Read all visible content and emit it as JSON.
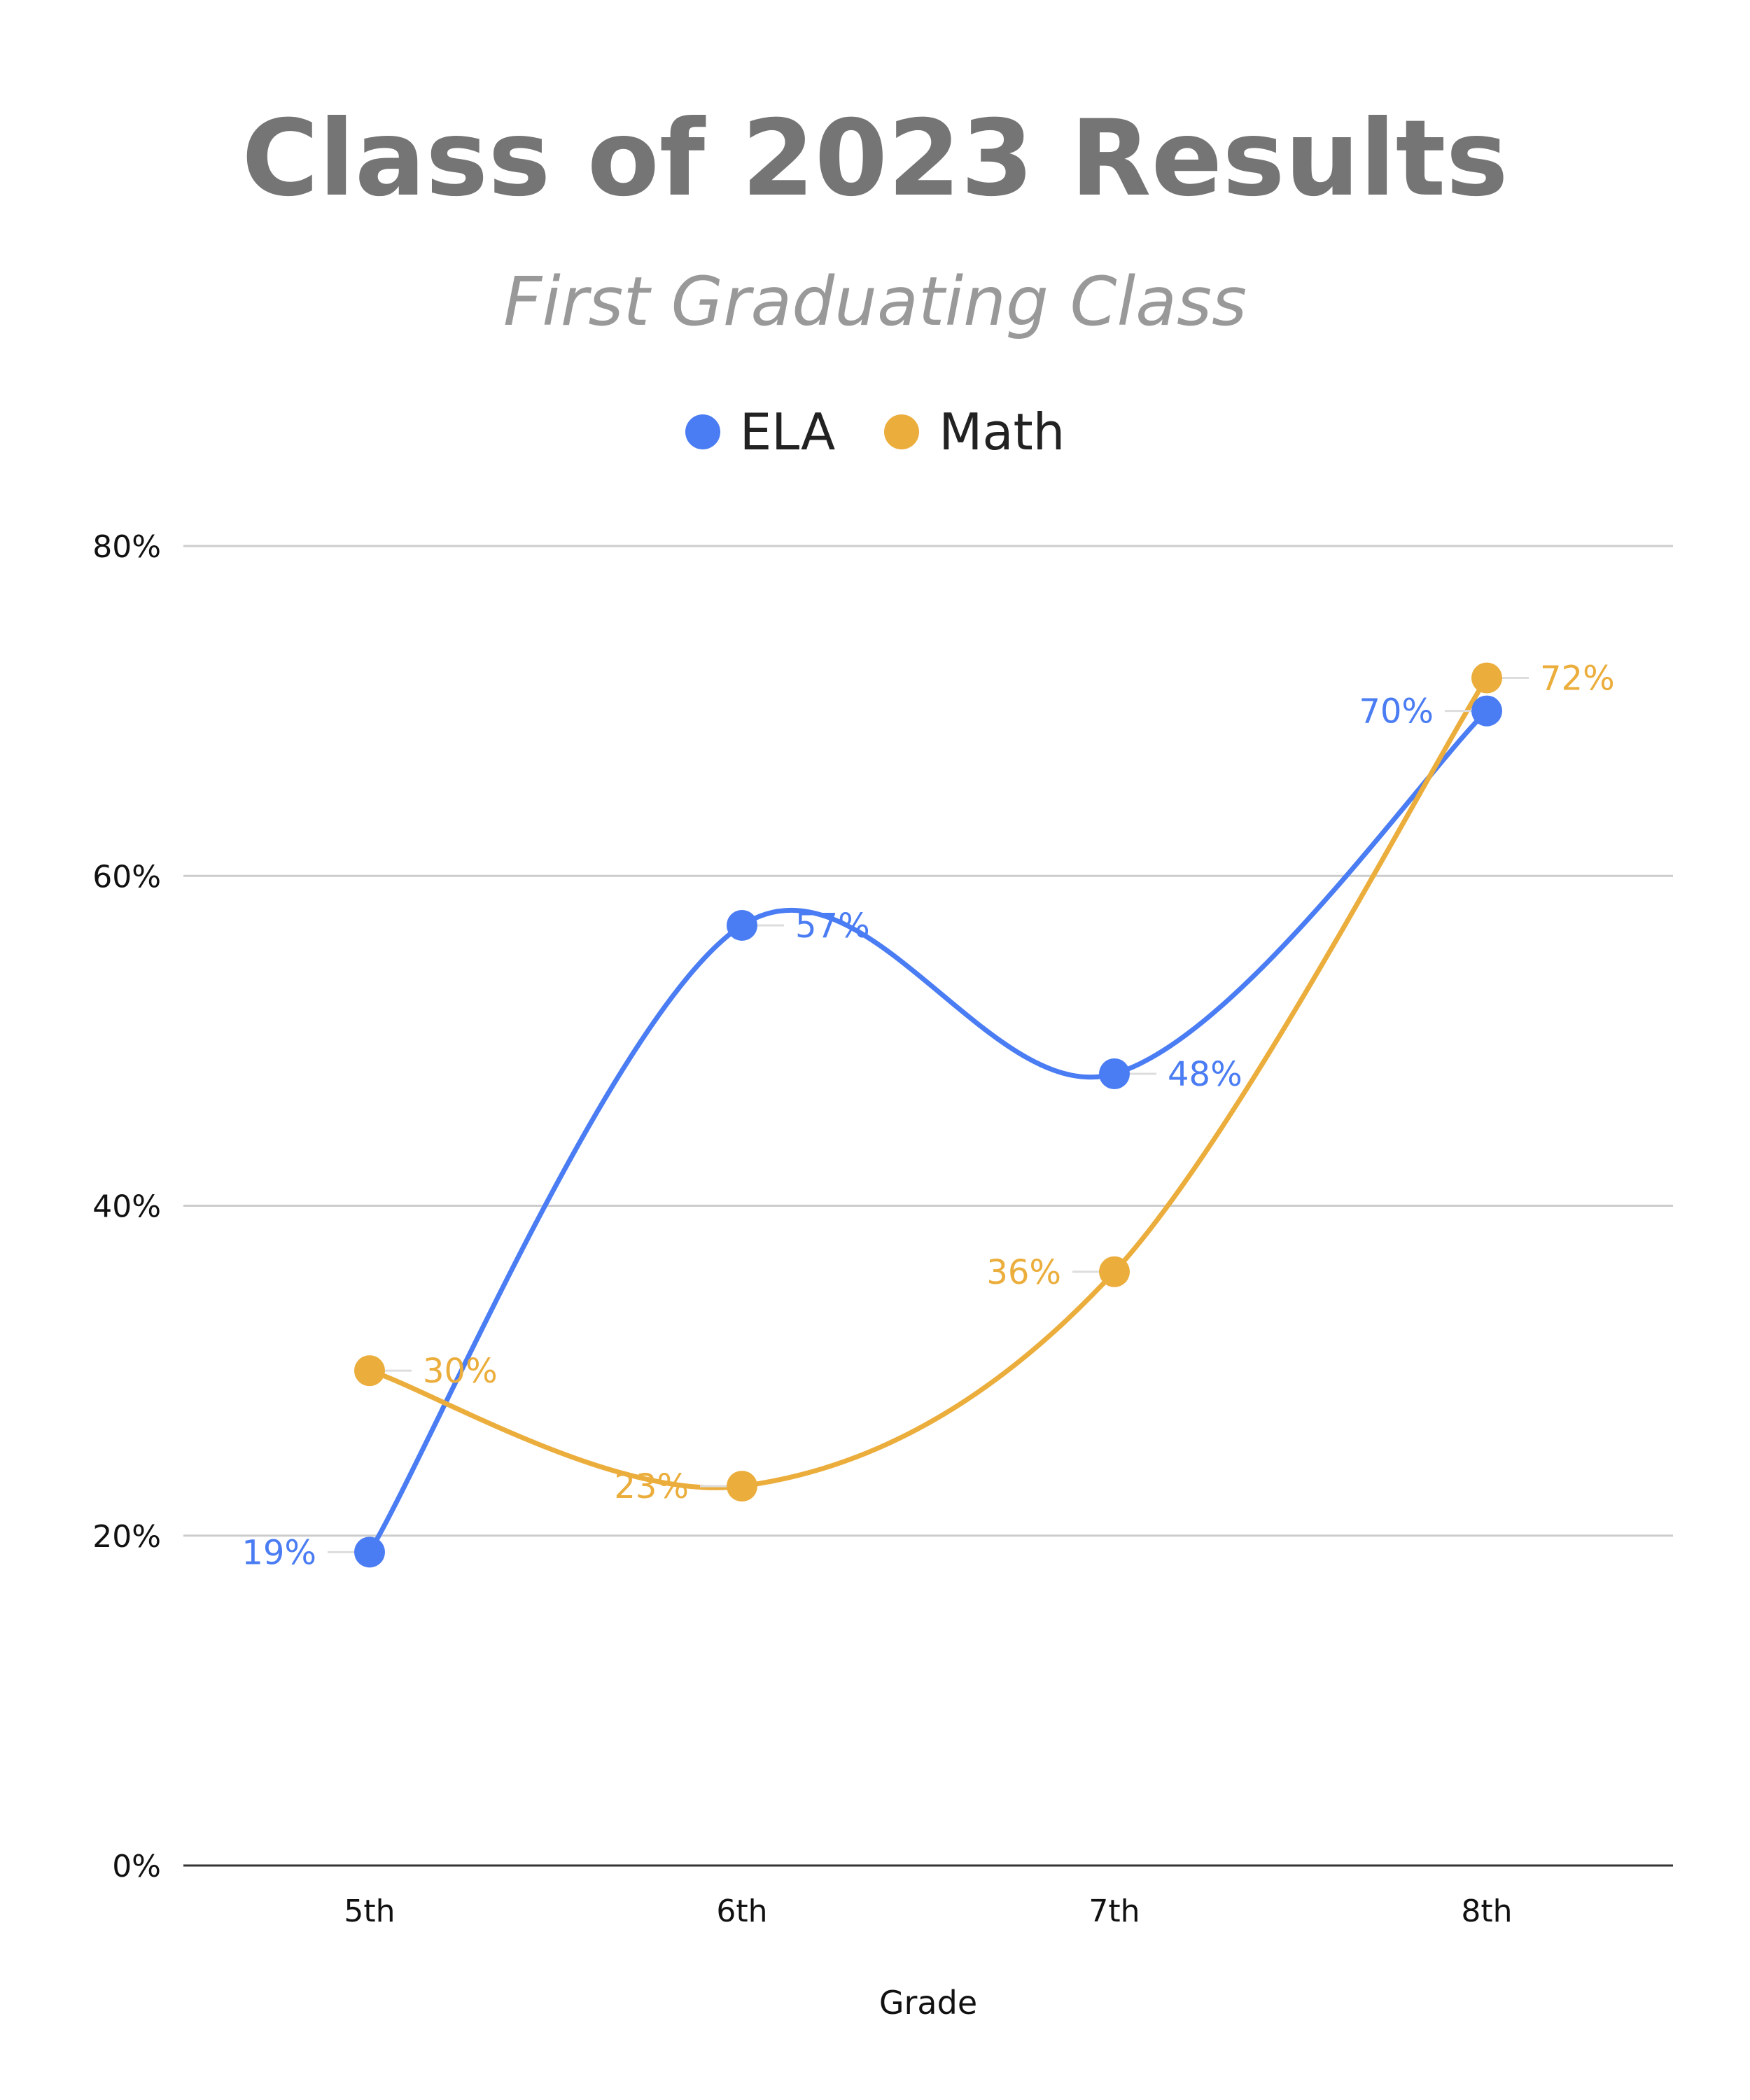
{
  "chart_data": {
    "type": "line",
    "title": "Class of 2023 Results",
    "subtitle": "First Graduating Class",
    "xlabel": "Grade",
    "ylabel": "",
    "categories": [
      "5th",
      "6th",
      "7th",
      "8th"
    ],
    "ylim": [
      0,
      80
    ],
    "yticks": [
      "0%",
      "20%",
      "40%",
      "60%",
      "80%"
    ],
    "grid": true,
    "smooth": true,
    "legend_position": "top",
    "series": [
      {
        "name": "ELA",
        "color": "#4a7cf3",
        "values": [
          19,
          57,
          48,
          70
        ],
        "labels": [
          "19%",
          "57%",
          "48%",
          "70%"
        ]
      },
      {
        "name": "Math",
        "color": "#ebad3b",
        "values": [
          30,
          23,
          36,
          72
        ],
        "labels": [
          "30%",
          "23%",
          "36%",
          "72%"
        ]
      }
    ]
  }
}
